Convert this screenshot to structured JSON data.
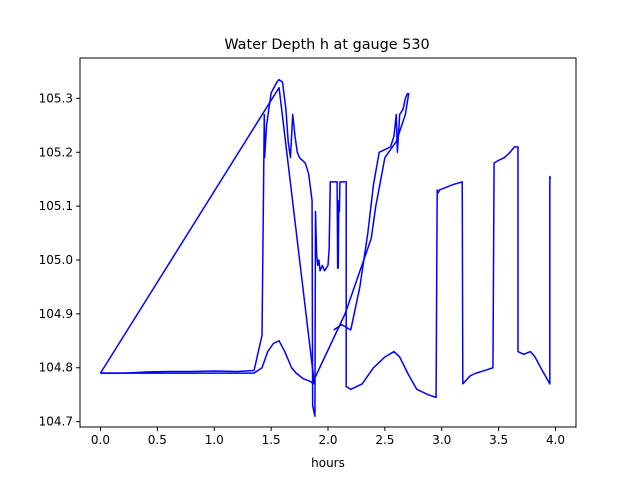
{
  "chart_data": {
    "type": "line",
    "title": "Water Depth h at gauge 530",
    "xlabel": "hours",
    "ylabel": "",
    "xlim": [
      -0.18,
      4.18
    ],
    "ylim": [
      104.69,
      105.375
    ],
    "xticks": [
      0.0,
      0.5,
      1.0,
      1.5,
      2.0,
      2.5,
      3.0,
      3.5,
      4.0
    ],
    "xtick_labels": [
      "0.0",
      "0.5",
      "1.0",
      "1.5",
      "2.0",
      "2.5",
      "3.0",
      "3.5",
      "4.0"
    ],
    "yticks": [
      104.7,
      104.8,
      104.9,
      105.0,
      105.1,
      105.2,
      105.3
    ],
    "ytick_labels": [
      "104.7",
      "104.8",
      "104.9",
      "105.0",
      "105.1",
      "105.2",
      "105.3"
    ],
    "grid": false,
    "legend": "none",
    "colors": {
      "line": "#0000ff",
      "axes": "#000000",
      "background": "#ffffff"
    },
    "series": [
      {
        "name": "",
        "points": [
          [
            0.0,
            104.79
          ],
          [
            0.2,
            104.79
          ],
          [
            0.4,
            104.792
          ],
          [
            0.6,
            104.793
          ],
          [
            0.8,
            104.793
          ],
          [
            1.0,
            104.794
          ],
          [
            1.2,
            104.793
          ],
          [
            1.35,
            104.795
          ],
          [
            1.42,
            104.86
          ],
          [
            1.44,
            105.27
          ],
          [
            1.443,
            105.19
          ],
          [
            1.46,
            105.25
          ],
          [
            1.5,
            105.31
          ],
          [
            1.55,
            105.33
          ],
          [
            1.57,
            105.335
          ],
          [
            1.6,
            105.33
          ],
          [
            1.63,
            105.28
          ],
          [
            1.65,
            105.22
          ],
          [
            1.67,
            105.19
          ],
          [
            1.69,
            105.27
          ],
          [
            1.71,
            105.23
          ],
          [
            1.73,
            105.2
          ],
          [
            1.75,
            105.19
          ],
          [
            1.8,
            105.18
          ],
          [
            1.83,
            105.16
          ],
          [
            1.86,
            105.11
          ],
          [
            1.865,
            104.73
          ],
          [
            1.885,
            104.71
          ],
          [
            1.89,
            105.09
          ],
          [
            1.9,
            105.01
          ],
          [
            1.91,
            104.99
          ],
          [
            1.92,
            105.0
          ],
          [
            1.93,
            104.98
          ],
          [
            1.95,
            104.99
          ],
          [
            1.97,
            104.98
          ],
          [
            2.0,
            104.99
          ],
          [
            2.01,
            105.02
          ],
          [
            2.02,
            105.145
          ],
          [
            2.05,
            105.145
          ],
          [
            2.08,
            105.145
          ],
          [
            2.085,
            104.985
          ],
          [
            2.09,
            104.985
          ],
          [
            2.095,
            105.11
          ],
          [
            2.1,
            105.09
          ],
          [
            2.105,
            105.145
          ],
          [
            2.14,
            105.145
          ],
          [
            2.16,
            105.145
          ],
          [
            2.16,
            104.765
          ],
          [
            2.2,
            104.76
          ],
          [
            2.3,
            104.77
          ],
          [
            2.4,
            104.8
          ],
          [
            2.5,
            104.82
          ],
          [
            2.58,
            104.83
          ],
          [
            2.63,
            104.82
          ],
          [
            2.7,
            104.79
          ],
          [
            2.78,
            104.76
          ],
          [
            2.88,
            104.75
          ],
          [
            2.95,
            104.745
          ],
          [
            2.96,
            105.13
          ],
          [
            2.97,
            105.125
          ],
          [
            2.98,
            105.13
          ],
          [
            3.1,
            105.14
          ],
          [
            3.18,
            105.145
          ],
          [
            3.185,
            104.77
          ],
          [
            3.25,
            104.785
          ],
          [
            3.3,
            104.79
          ],
          [
            3.38,
            104.795
          ],
          [
            3.45,
            104.8
          ],
          [
            3.46,
            105.18
          ],
          [
            3.5,
            105.185
          ],
          [
            3.55,
            105.19
          ],
          [
            3.6,
            105.2
          ],
          [
            3.64,
            105.21
          ],
          [
            3.67,
            105.21
          ],
          [
            3.67,
            104.83
          ],
          [
            3.72,
            104.825
          ],
          [
            3.78,
            104.83
          ],
          [
            3.82,
            104.82
          ],
          [
            3.87,
            104.8
          ],
          [
            3.95,
            104.77
          ],
          [
            3.95,
            105.155
          ],
          [
            3.955,
            105.15
          ]
        ]
      },
      {
        "name": "",
        "points": [
          [
            0.0,
            104.79
          ],
          [
            1.57,
            105.32
          ],
          [
            1.88,
            104.77
          ]
        ]
      },
      {
        "name": "",
        "points": [
          [
            1.88,
            104.77
          ],
          [
            1.84,
            104.775
          ],
          [
            1.78,
            104.78
          ],
          [
            1.72,
            104.79
          ],
          [
            1.68,
            104.8
          ],
          [
            1.62,
            104.83
          ],
          [
            1.57,
            104.85
          ],
          [
            1.52,
            104.845
          ],
          [
            1.47,
            104.83
          ],
          [
            1.42,
            104.8
          ],
          [
            1.35,
            104.79
          ],
          [
            1.2,
            104.79
          ],
          [
            0.9,
            104.79
          ],
          [
            0.5,
            104.79
          ],
          [
            0.0,
            104.79
          ]
        ]
      },
      {
        "name": "",
        "points": [
          [
            1.86,
            104.77
          ],
          [
            2.15,
            104.9
          ],
          [
            2.38,
            105.04
          ],
          [
            2.42,
            105.1
          ],
          [
            2.5,
            105.19
          ],
          [
            2.6,
            105.22
          ],
          [
            2.68,
            105.27
          ],
          [
            2.71,
            105.31
          ]
        ]
      },
      {
        "name": "",
        "points": [
          [
            2.05,
            104.87
          ],
          [
            2.12,
            104.88
          ],
          [
            2.2,
            104.87
          ],
          [
            2.28,
            104.95
          ],
          [
            2.35,
            105.05
          ],
          [
            2.4,
            105.14
          ],
          [
            2.45,
            105.2
          ],
          [
            2.5,
            105.205
          ],
          [
            2.55,
            105.21
          ],
          [
            2.58,
            105.23
          ],
          [
            2.6,
            105.27
          ],
          [
            2.61,
            105.2
          ],
          [
            2.63,
            105.27
          ],
          [
            2.66,
            105.28
          ],
          [
            2.68,
            105.3
          ],
          [
            2.7,
            105.31
          ]
        ]
      }
    ]
  }
}
